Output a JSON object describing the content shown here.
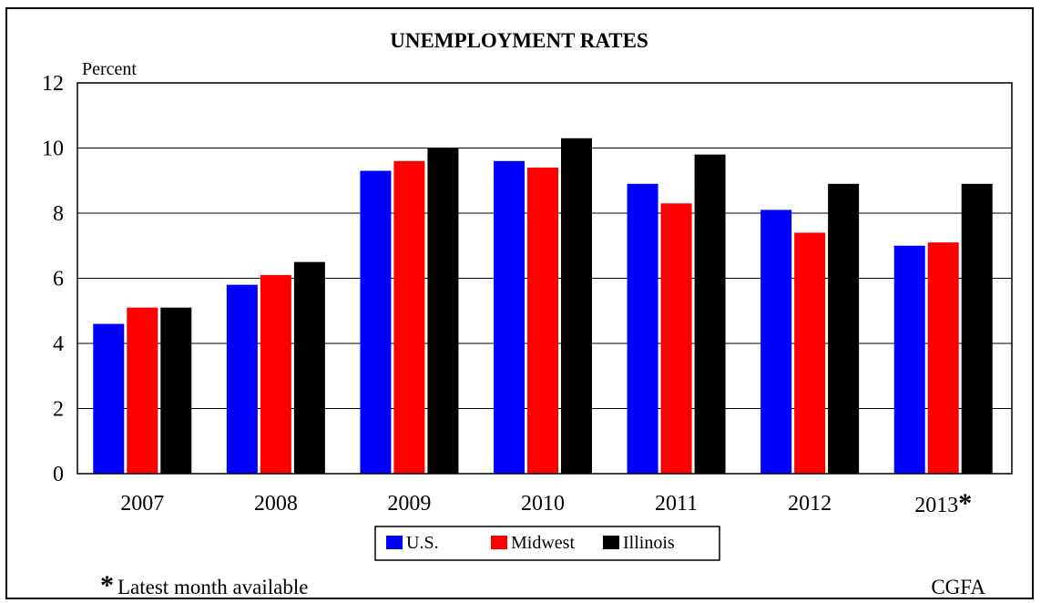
{
  "chart_data": {
    "type": "bar",
    "title": "UNEMPLOYMENT RATES",
    "ylabel": "Percent",
    "xlabel": "",
    "ylim": [
      0,
      12
    ],
    "yticks": [
      0,
      2,
      4,
      6,
      8,
      10,
      12
    ],
    "grid": true,
    "legend_position": "bottom-center",
    "categories": [
      "2007",
      "2008",
      "2009",
      "2010",
      "2011",
      "2012",
      "2013"
    ],
    "category_marks": [
      "",
      "",
      "",
      "",
      "",
      "",
      "*"
    ],
    "series": [
      {
        "name": "U.S.",
        "color": "#0000FF",
        "values": [
          4.6,
          5.8,
          9.3,
          9.6,
          8.9,
          8.1,
          7.0
        ]
      },
      {
        "name": "Midwest",
        "color": "#FF0000",
        "values": [
          5.1,
          6.1,
          9.6,
          9.4,
          8.3,
          7.4,
          7.1
        ]
      },
      {
        "name": "Illinois",
        "color": "#000000",
        "values": [
          5.1,
          6.5,
          10.0,
          10.3,
          9.8,
          8.9,
          8.9
        ]
      }
    ],
    "footnote": {
      "mark": "*",
      "text": "Latest month available"
    },
    "source": "CGFA"
  }
}
